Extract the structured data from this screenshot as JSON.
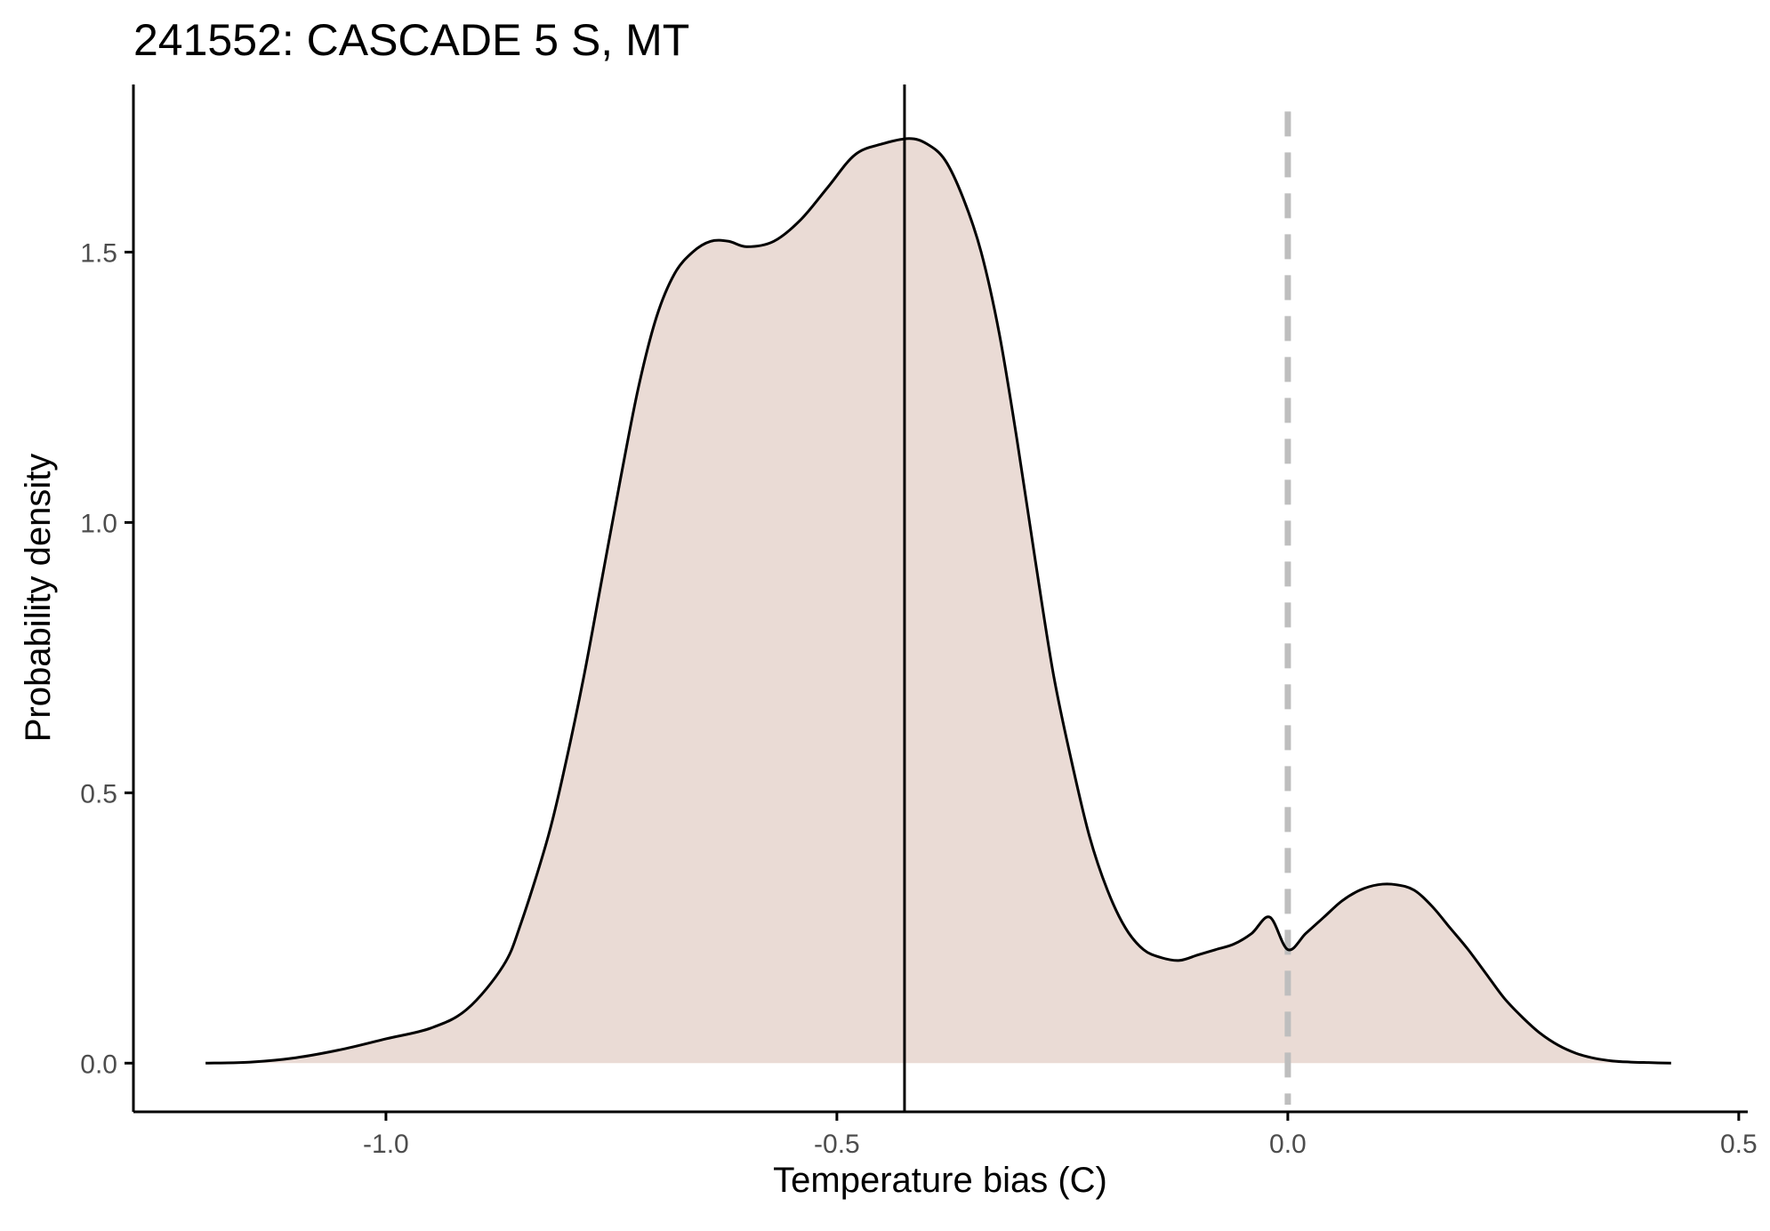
{
  "chart_data": {
    "type": "area",
    "title": "241552: CASCADE 5 S, MT",
    "xlabel": "Temperature bias (C)",
    "ylabel": "Probability density",
    "xlim": [
      -1.28,
      0.51
    ],
    "ylim": [
      -0.09,
      1.81
    ],
    "x_ticks": [
      {
        "value": -1.0,
        "label": "-1.0"
      },
      {
        "value": -0.5,
        "label": "-0.5"
      },
      {
        "value": 0.0,
        "label": "0.0"
      },
      {
        "value": 0.5,
        "label": "0.5"
      }
    ],
    "y_ticks": [
      {
        "value": 0.0,
        "label": "0.0"
      },
      {
        "value": 0.5,
        "label": "0.5"
      },
      {
        "value": 1.0,
        "label": "1.0"
      },
      {
        "value": 1.5,
        "label": "1.5"
      }
    ],
    "grid": false,
    "legend": "none",
    "fill_color": "#eadbd5",
    "line_color": "#000000",
    "series": [
      {
        "x": [
          -1.2,
          -1.15,
          -1.1,
          -1.05,
          -1.0,
          -0.95,
          -0.91,
          -0.87,
          -0.85,
          -0.82,
          -0.8,
          -0.78,
          -0.76,
          -0.74,
          -0.72,
          -0.7,
          -0.68,
          -0.66,
          -0.64,
          -0.62,
          -0.6,
          -0.57,
          -0.54,
          -0.51,
          -0.48,
          -0.45,
          -0.42,
          -0.4,
          -0.38,
          -0.36,
          -0.34,
          -0.32,
          -0.3,
          -0.28,
          -0.26,
          -0.24,
          -0.22,
          -0.2,
          -0.18,
          -0.16,
          -0.14,
          -0.12,
          -0.1,
          -0.08,
          -0.06,
          -0.04,
          -0.02,
          0.0,
          0.02,
          0.04,
          0.06,
          0.08,
          0.1,
          0.12,
          0.14,
          0.16,
          0.18,
          0.2,
          0.22,
          0.24,
          0.26,
          0.28,
          0.3,
          0.32,
          0.34,
          0.36,
          0.38,
          0.4,
          0.425
        ],
        "y": [
          0.0,
          0.002,
          0.01,
          0.025,
          0.045,
          0.065,
          0.1,
          0.18,
          0.26,
          0.42,
          0.56,
          0.72,
          0.9,
          1.08,
          1.25,
          1.38,
          1.46,
          1.5,
          1.52,
          1.52,
          1.51,
          1.52,
          1.56,
          1.62,
          1.68,
          1.7,
          1.71,
          1.7,
          1.67,
          1.6,
          1.5,
          1.35,
          1.15,
          0.93,
          0.72,
          0.56,
          0.42,
          0.32,
          0.25,
          0.21,
          0.195,
          0.19,
          0.2,
          0.21,
          0.22,
          0.24,
          0.27,
          0.21,
          0.24,
          0.27,
          0.3,
          0.32,
          0.33,
          0.33,
          0.32,
          0.29,
          0.25,
          0.21,
          0.165,
          0.12,
          0.085,
          0.055,
          0.033,
          0.018,
          0.009,
          0.004,
          0.002,
          0.001,
          0.0
        ]
      }
    ],
    "reference_lines": [
      {
        "x": -0.425,
        "style": "solid",
        "color": "#000000"
      },
      {
        "x": 0.0,
        "style": "dashed",
        "color": "#bebebe"
      }
    ]
  }
}
